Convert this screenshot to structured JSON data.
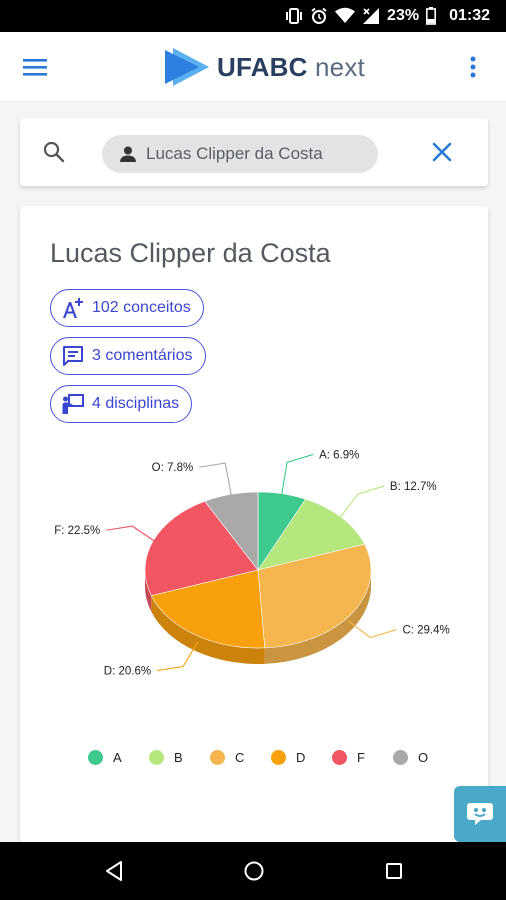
{
  "status_bar": {
    "battery": "23%",
    "time": "01:32"
  },
  "appbar": {
    "logo_bold": "UFABC",
    "logo_light": "next"
  },
  "search": {
    "chip_label": "Lucas Clipper da Costa"
  },
  "profile": {
    "name": "Lucas Clipper da Costa",
    "pills": [
      {
        "label": "102 conceitos",
        "icon": "grade-plus-icon"
      },
      {
        "label": "3 comentários",
        "icon": "comment-icon"
      },
      {
        "label": "4 disciplinas",
        "icon": "teacher-icon"
      }
    ]
  },
  "chart_data": {
    "type": "pie",
    "categories": [
      "A",
      "B",
      "C",
      "D",
      "F",
      "O"
    ],
    "values": [
      6.9,
      12.7,
      29.4,
      20.6,
      22.5,
      7.8
    ],
    "data_labels": [
      "A: 6.9%",
      "B: 12.7%",
      "C: 29.4%",
      "D: 20.6%",
      "F: 22.5%",
      "O: 7.8%"
    ],
    "colors": [
      "#3ec98e",
      "#b6e67e",
      "#f6b64f",
      "#f9a00d",
      "#f25663",
      "#a9a9a9"
    ],
    "legend": "bottom",
    "style": "3d"
  }
}
